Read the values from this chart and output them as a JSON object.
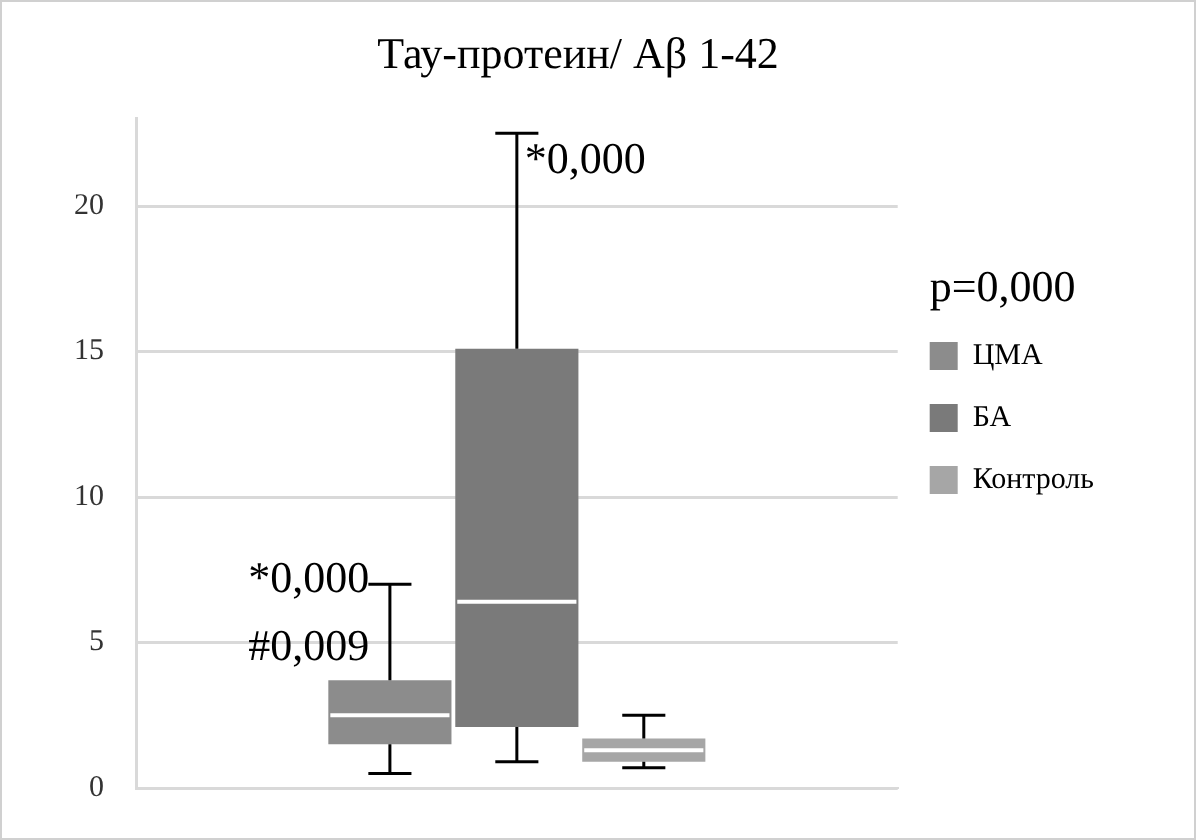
{
  "chart_data": {
    "type": "box",
    "title": "Тау-протеин/ Aβ 1-42",
    "categories": [
      null
    ],
    "series": [
      {
        "name": "ЦМА",
        "color": "#8c8c8c",
        "boxes": [
          {
            "low": 0.5,
            "q1": 1.5,
            "median": 2.5,
            "q3": 3.7,
            "high": 7.0
          }
        ]
      },
      {
        "name": "БА",
        "color": "#7a7a7a",
        "boxes": [
          {
            "low": 0.9,
            "q1": 2.1,
            "median": 6.4,
            "q3": 15.1,
            "high": 22.5
          }
        ]
      },
      {
        "name": "Контроль",
        "color": "#a6a6a6",
        "boxes": [
          {
            "low": 0.7,
            "q1": 0.9,
            "median": 1.3,
            "q3": 1.7,
            "high": 2.5
          }
        ]
      }
    ],
    "ylim": [
      0,
      23
    ],
    "yticks": [
      0,
      5,
      10,
      15,
      20
    ],
    "grid": "y",
    "legend": "right",
    "annotations": [
      "*0,000",
      "#0,009",
      "*0,000",
      "p=0,000"
    ]
  }
}
